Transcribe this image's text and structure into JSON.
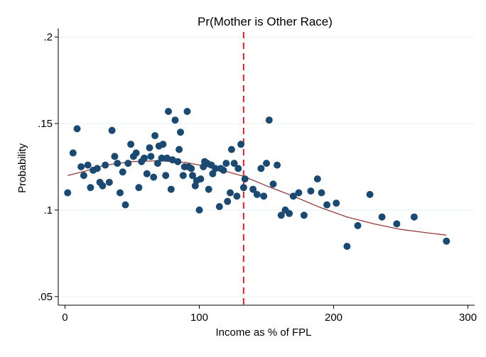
{
  "chart_data": {
    "type": "scatter",
    "title": "Pr(Mother is Other Race)",
    "xlabel": "Income as % of FPL",
    "ylabel": "Probability",
    "xlim": [
      -5,
      305
    ],
    "ylim": [
      0.045,
      0.205
    ],
    "xticks": [
      0,
      100,
      200,
      300
    ],
    "xtick_labels": [
      "0",
      "100",
      "200",
      "300"
    ],
    "yticks": [
      0.05,
      0.1,
      0.15,
      0.2
    ],
    "ytick_labels": [
      ".05",
      ".1",
      ".15",
      ".2"
    ],
    "grid": "horizontal",
    "colors": {
      "points": "#1a4971",
      "fit": "#953c3c",
      "cutoff": "#e0202a",
      "grid": "#eaeff3"
    },
    "cutoff_x": 133,
    "points": [
      [
        2,
        0.11
      ],
      [
        6,
        0.133
      ],
      [
        9,
        0.147
      ],
      [
        12,
        0.125
      ],
      [
        14,
        0.12
      ],
      [
        17,
        0.126
      ],
      [
        19,
        0.113
      ],
      [
        21,
        0.123
      ],
      [
        24,
        0.124
      ],
      [
        26,
        0.116
      ],
      [
        28,
        0.114
      ],
      [
        30,
        0.126
      ],
      [
        33,
        0.116
      ],
      [
        35,
        0.146
      ],
      [
        37,
        0.131
      ],
      [
        39,
        0.127
      ],
      [
        41,
        0.11
      ],
      [
        43,
        0.122
      ],
      [
        45,
        0.103
      ],
      [
        47,
        0.127
      ],
      [
        49,
        0.138
      ],
      [
        51,
        0.131
      ],
      [
        53,
        0.133
      ],
      [
        55,
        0.113
      ],
      [
        57,
        0.128
      ],
      [
        59,
        0.13
      ],
      [
        61,
        0.121
      ],
      [
        63,
        0.136
      ],
      [
        64,
        0.131
      ],
      [
        66,
        0.119
      ],
      [
        67,
        0.143
      ],
      [
        69,
        0.127
      ],
      [
        70,
        0.137
      ],
      [
        72,
        0.13
      ],
      [
        73,
        0.138
      ],
      [
        75,
        0.12
      ],
      [
        76,
        0.13
      ],
      [
        77,
        0.157
      ],
      [
        79,
        0.112
      ],
      [
        80,
        0.129
      ],
      [
        82,
        0.152
      ],
      [
        84,
        0.128
      ],
      [
        85,
        0.135
      ],
      [
        86,
        0.145
      ],
      [
        88,
        0.12
      ],
      [
        89,
        0.125
      ],
      [
        91,
        0.157
      ],
      [
        92,
        0.125
      ],
      [
        94,
        0.124
      ],
      [
        95,
        0.12
      ],
      [
        97,
        0.114
      ],
      [
        98,
        0.117
      ],
      [
        100,
        0.1
      ],
      [
        101,
        0.118
      ],
      [
        103,
        0.125
      ],
      [
        104,
        0.128
      ],
      [
        106,
        0.127
      ],
      [
        107,
        0.112
      ],
      [
        109,
        0.126
      ],
      [
        110,
        0.121
      ],
      [
        112,
        0.124
      ],
      [
        115,
        0.102
      ],
      [
        116,
        0.124
      ],
      [
        118,
        0.123
      ],
      [
        120,
        0.127
      ],
      [
        121,
        0.105
      ],
      [
        123,
        0.11
      ],
      [
        124,
        0.135
      ],
      [
        126,
        0.127
      ],
      [
        128,
        0.108
      ],
      [
        129,
        0.124
      ],
      [
        131,
        0.138
      ],
      [
        133,
        0.113
      ],
      [
        134,
        0.118
      ],
      [
        140,
        0.112
      ],
      [
        143,
        0.109
      ],
      [
        146,
        0.124
      ],
      [
        148,
        0.108
      ],
      [
        150,
        0.127
      ],
      [
        152,
        0.152
      ],
      [
        155,
        0.115
      ],
      [
        158,
        0.126
      ],
      [
        161,
        0.097
      ],
      [
        164,
        0.1
      ],
      [
        167,
        0.098
      ],
      [
        170,
        0.108
      ],
      [
        174,
        0.11
      ],
      [
        178,
        0.097
      ],
      [
        183,
        0.111
      ],
      [
        188,
        0.118
      ],
      [
        191,
        0.11
      ],
      [
        195,
        0.103
      ],
      [
        202,
        0.104
      ],
      [
        210,
        0.079
      ],
      [
        218,
        0.091
      ],
      [
        227,
        0.109
      ],
      [
        236,
        0.096
      ],
      [
        247,
        0.092
      ],
      [
        260,
        0.096
      ],
      [
        284,
        0.082
      ]
    ],
    "fit_line": [
      [
        2,
        0.12
      ],
      [
        15,
        0.1225
      ],
      [
        30,
        0.126
      ],
      [
        50,
        0.128
      ],
      [
        70,
        0.1285
      ],
      [
        90,
        0.1275
      ],
      [
        110,
        0.1245
      ],
      [
        133,
        0.1195
      ],
      [
        150,
        0.114
      ],
      [
        170,
        0.108
      ],
      [
        190,
        0.1015
      ],
      [
        210,
        0.096
      ],
      [
        230,
        0.092
      ],
      [
        250,
        0.0888
      ],
      [
        270,
        0.0868
      ],
      [
        284,
        0.0855
      ]
    ]
  }
}
